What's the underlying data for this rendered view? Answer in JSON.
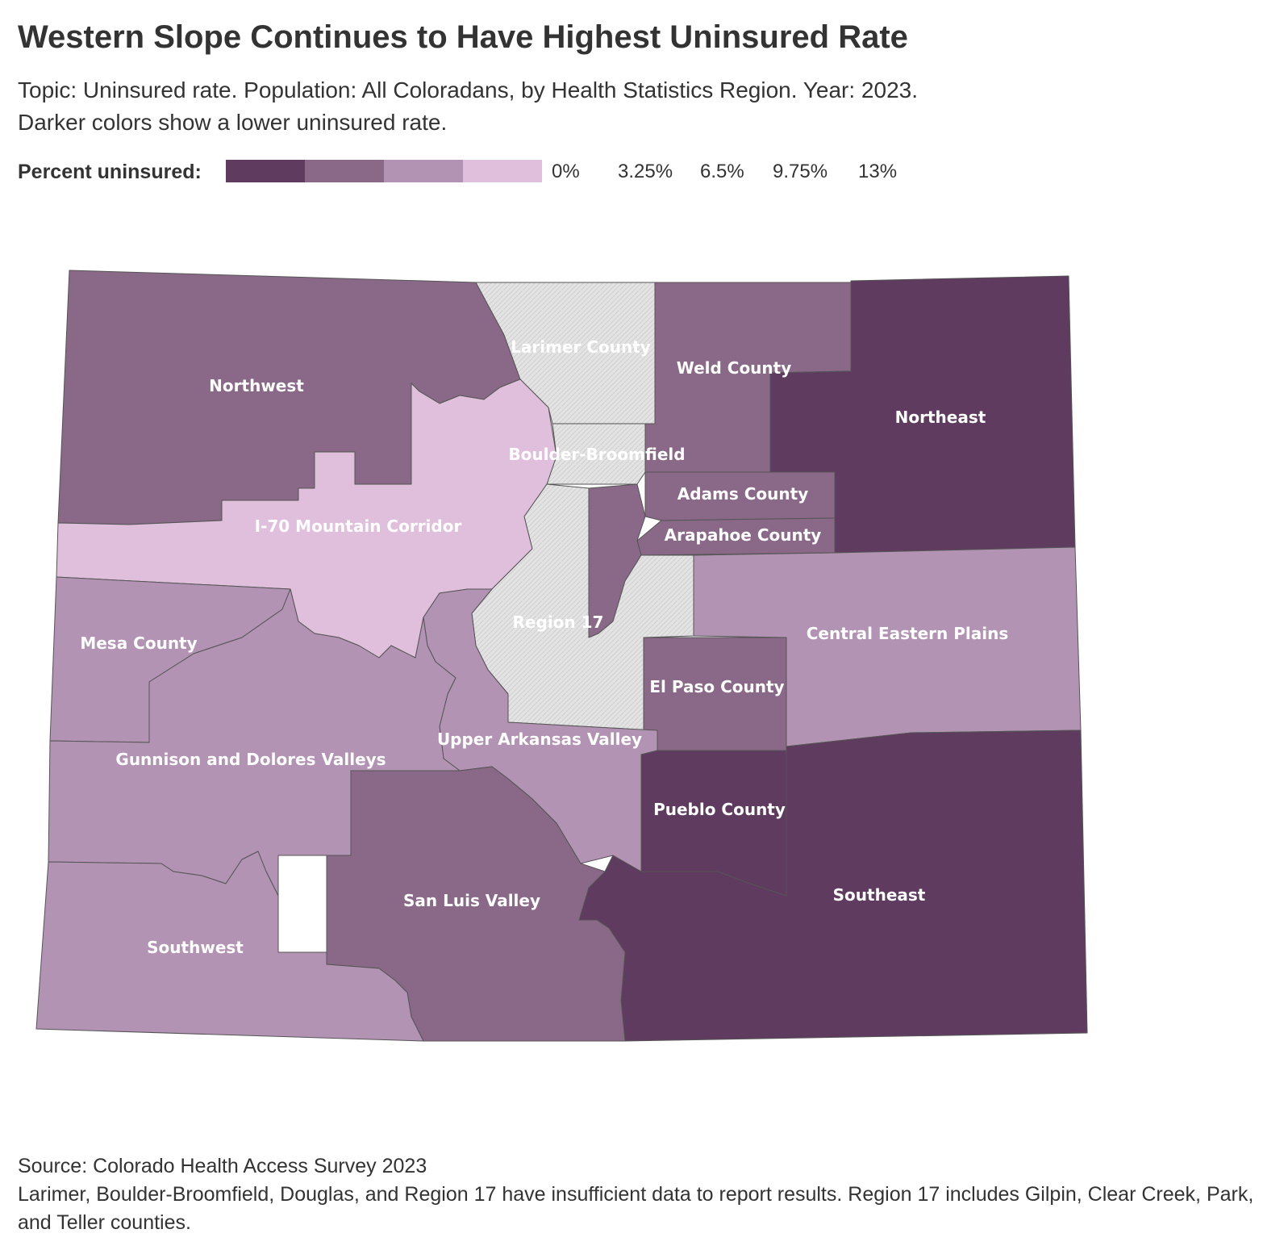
{
  "title": "Western Slope Continues to Have Highest Uninsured Rate",
  "subtitle_line1": "Topic: Uninsured rate. Population: All Coloradans, by Health Statistics Region. Year: 2023.",
  "subtitle_line2": "Darker colors show a lower uninsured rate.",
  "legend": {
    "label": "Percent uninsured:",
    "colors": [
      "#5e3b5f",
      "#8a6888",
      "#b393b4",
      "#e0bfdc"
    ],
    "ticks": [
      "0%",
      "3.25%",
      "6.5%",
      "9.75%",
      "13%"
    ]
  },
  "colors": {
    "bin1": "#5e3b5f",
    "bin2": "#8a6888",
    "bin3": "#b393b4",
    "bin4": "#e0bfdc",
    "no_data": "#e3e3e3"
  },
  "regions": {
    "northwest": "Northwest",
    "larimer": "Larimer County",
    "weld": "Weld County",
    "northeast": "Northeast",
    "boulder": "Boulder-Broomfield",
    "adams": "Adams County",
    "arapahoe": "Arapahoe County",
    "i70": "I-70 Mountain Corridor",
    "mesa": "Mesa County",
    "region17": "Region 17",
    "central_eastern": "Central Eastern Plains",
    "el_paso": "El Paso County",
    "upper_arkansas": "Upper Arkansas Valley",
    "gunnison": "Gunnison and Dolores Valleys",
    "pueblo": "Pueblo County",
    "southeast": "Southeast",
    "san_luis": "San Luis Valley",
    "southwest": "Southwest"
  },
  "footer": {
    "source": "Source: Colorado Health Access Survey 2023",
    "note": "Larimer, Boulder-Broomfield, Douglas, and Region 17 have insufficient data to report results. Region 17 includes Gilpin, Clear Creek, Park, and Teller counties."
  }
}
